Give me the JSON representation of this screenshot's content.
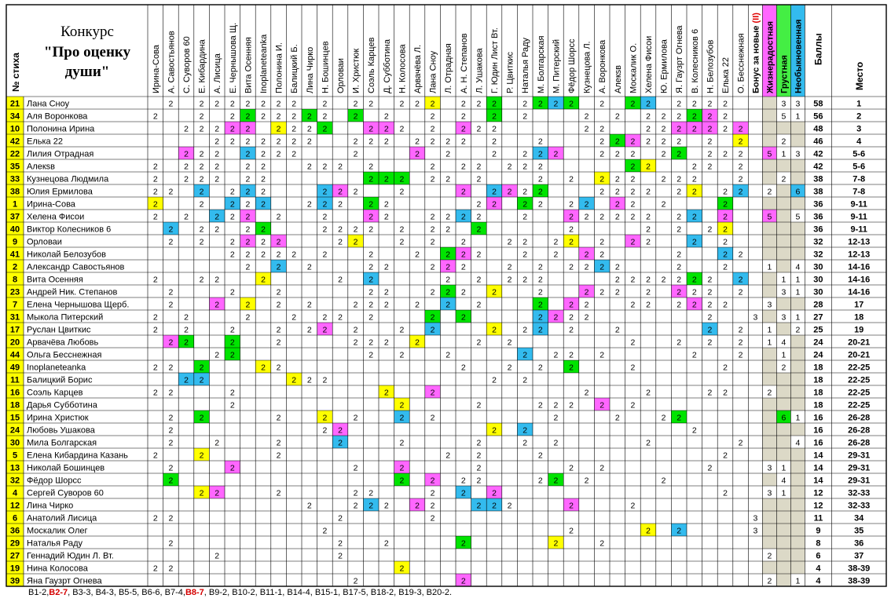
{
  "title": {
    "line1": "Конкурс",
    "line2": "\"Про оценку",
    "line3": "души\""
  },
  "headers": {
    "num": "№ стиха",
    "bonus": "Бонус за новые (II)",
    "bonus_main": "Бонус за новые",
    "bonus_red": "(II)",
    "zhizn": "Жизнерадостная",
    "grust": "Грустная",
    "neob": "Необыкновенная",
    "bally": "Баллы",
    "mesto": "Место"
  },
  "colors": {
    "yellow": "#ffff00",
    "green": "#00e400",
    "pink": "#ff66ff",
    "blue": "#33bbee",
    "numcell": "#ffff00",
    "grey": "#dcd9c7",
    "red_text": "#e00000",
    "hdr_pink": "#ff66ff",
    "hdr_green": "#44ee44",
    "hdr_blue": "#33bbee"
  },
  "jurors": [
    "Ирина-Сова",
    "А. Савостьянов",
    "С. Суворов 60",
    "Е. Кибардина",
    "А. Лисица",
    "Е. Чернышова Щ.",
    "Вита Осенняя",
    "Inoplaneteanka",
    "Полонина И.",
    "Балицкий Б.",
    "Лина Чирко",
    "Н. Бошинцев",
    "Орловаи",
    "И. Христюк",
    "Соэль Карцев",
    "Д. Субботина",
    "Н. Колосова",
    "Арвачёва Л.",
    "Лана Сноу",
    "Л. Отрадная",
    "А. Н. Степанов",
    "Л. Ушакова",
    "Г. Юдин Лист Вт.",
    "Р. Цвиткис",
    "Наталья Раду",
    "М. Болгарская",
    "М. Питерский",
    "Фёдор Шорсс",
    "Кузнецова Л.",
    "А. Воронкова",
    "Алекsв",
    "Москалик О.",
    "Хелена Фисои",
    "Ю. Ермилова",
    "Я. Гаузрт Огнева",
    "В. Колесников 6",
    "Н. Белозубов",
    "Елька 22",
    "О. Бесснежная"
  ],
  "rows": [
    {
      "num": "21",
      "name": "Лана Сноу",
      "cells": "_2_2222222_2_22_22Y_22G_2GBG_2_GB_2222",
      "bonus": "",
      "z": "",
      "g": "3",
      "n": "3",
      "score": "58",
      "place": "1"
    },
    {
      "num": "34",
      "name": "Аля Воронкова",
      "cells": "2__2_2G222G2_G_2__2_2_G_2___2_2_222GP2_",
      "bonus": "",
      "z": "",
      "g": "5",
      "n": "1",
      "score": "56",
      "place": "2"
    },
    {
      "num": "10",
      "name": "Полонина Ирина",
      "cells": "__222PP_Y22G__PP2_2_P22_____22__22PPP2P2",
      "bonus": "",
      "z": "",
      "g": "",
      "n": "",
      "score": "48",
      "place": "3"
    },
    {
      "num": "42",
      "name": "Елька 22",
      "cells": "____2222222__222_2222_2__2___2GP222_2_Y_",
      "bonus": "",
      "z": "",
      "g": "2",
      "n": "",
      "score": "46",
      "place": "4"
    },
    {
      "num": "22",
      "name": "Лилия Отрадная",
      "cells": "__P22_B222___2___P_2__2_2BP__222_2G_222_",
      "bonus": "",
      "z": "5",
      "g": "1",
      "n": "3",
      "score": "42",
      "place": "5-6"
    },
    {
      "num": "35",
      "name": "Алекsв",
      "cells": "2_222_22__222_2___2_22_222_____GY__22_222",
      "bonus": "",
      "z": "",
      "g": "",
      "n": "",
      "score": "42",
      "place": "5-6"
    },
    {
      "num": "33",
      "name": "Кузнецова Людмила",
      "cells": "2_222_22______GGG_22_2___2_2_Y22_222__2",
      "bonus": "",
      "z": "",
      "g": "2",
      "n": "",
      "score": "38",
      "place": "7-8"
    },
    {
      "num": "38",
      "name": "Юлия Ермилова",
      "cells": "22_B_2B2___BP2__2___P_BP2G___2222_2Y_2B_",
      "bonus": "",
      "z": "2",
      "g": "",
      "n": "6",
      "score": "38",
      "place": "7-8"
    },
    {
      "num": "1",
      "name": "Ирина-Сова",
      "cells": "Y__2_B2B__2B2_G2_____2P_G2_2B_P2_2___G_2",
      "bonus": "",
      "z": "",
      "g": "",
      "n": "",
      "score": "36",
      "place": "9-11"
    },
    {
      "num": "37",
      "name": "Хелена Фисои",
      "cells": "2_2_B2P_2__2__P2__22B2__2__P22222_2B_P_2",
      "bonus": "",
      "z": "5",
      "g": "",
      "n": "5",
      "score": "36",
      "place": "9-11"
    },
    {
      "num": "40",
      "name": "Виктор Колесников 6",
      "cells": "_B_22_2G___2222_2_22_G_____2____2_2_2Y__",
      "bonus": "",
      "z": "",
      "g": "",
      "n": "",
      "score": "36",
      "place": "9-11"
    },
    {
      "num": "9",
      "name": "Орловаи",
      "cells": "_2_2_2P2P___2Y__2_2_2__22_2Y_2_P2__B_2__",
      "bonus": "",
      "z": "",
      "g": "",
      "n": "",
      "score": "32",
      "place": "12-13"
    },
    {
      "num": "41",
      "name": "Николай Белозубов",
      "cells": "_____22222_2__2__2_GP2__2_2_P2____2__B2_",
      "bonus": "",
      "z": "",
      "g": "",
      "n": "",
      "score": "32",
      "place": "12-13"
    },
    {
      "num": "2",
      "name": "Александр Савостьянов",
      "cells": "______2_B_2___22__2P2__2_2_22B2___2__2__",
      "bonus": "",
      "z": "1",
      "g": "",
      "n": "4",
      "score": "30",
      "place": "14-16"
    },
    {
      "num": "8",
      "name": "Вита Осенняя",
      "cells": "2__22__Y____2_B____2_2_222____22222G2_B__",
      "bonus": "",
      "z": "",
      "g": "1",
      "n": "1",
      "score": "30",
      "place": "14-16"
    },
    {
      "num": "23",
      "name": "Андрей Ник. Степанов",
      "cells": "_2___2__2_____22__2G2_Y__2__P22_2_P22_22_",
      "bonus": "",
      "z": "",
      "g": "3",
      "n": "1",
      "score": "30",
      "place": "14-16"
    },
    {
      "num": "7",
      "name": "Елена Чернышова Щерб.",
      "cells": "_2__P_Y_2_2__222_2_B_2___G_P2__22_2P22_2",
      "bonus": "",
      "z": "3",
      "g": "",
      "n": "",
      "score": "28",
      "place": "17"
    },
    {
      "num": "31",
      "name": "Мыкола Питерский",
      "cells": "2_2___2__2_22_2___G_G____BP22_______2____",
      "bonus": "3",
      "z": "",
      "g": "3",
      "n": "1",
      "score": "27",
      "place": "18"
    },
    {
      "num": "17",
      "name": "Руслан Цвиткис",
      "cells": "2_2__2__2_2P_2__2_B___Y_2B_2__2_____B_2_",
      "bonus": "",
      "z": "1",
      "g": "",
      "n": "2",
      "score": "25",
      "place": "19"
    },
    {
      "num": "20",
      "name": "Арвачёва Любовь",
      "cells": "_PG__G__2____222_Y___2_2_______2__2_2_2_",
      "bonus": "",
      "z": "1",
      "g": "4",
      "n": "",
      "score": "24",
      "place": "20-21"
    },
    {
      "num": "44",
      "name": "Ольга Бесснежная",
      "cells": "____2G________2_2__2____B_22_2_____2__2",
      "bonus": "",
      "z": "",
      "g": "1",
      "n": "",
      "score": "24",
      "place": "20-21"
    },
    {
      "num": "49",
      "name": "Inoplaneteanka",
      "cells": "22_G___Y2___________2__2_2_G___2_____2__",
      "bonus": "",
      "z": "",
      "g": "2",
      "n": "",
      "score": "18",
      "place": "22-25"
    },
    {
      "num": "11",
      "name": "Балицкий Борис",
      "cells": "__BB_____Y22__________2_2______________",
      "bonus": "",
      "z": "",
      "g": "",
      "n": "",
      "score": "18",
      "place": "22-25"
    },
    {
      "num": "16",
      "name": "Соэль Карцев",
      "cells": "22___2_________Y__P_________2___2___22_",
      "bonus": "",
      "z": "2",
      "g": "",
      "n": "",
      "score": "18",
      "place": "22-25"
    },
    {
      "num": "18",
      "name": "Дарья Субботина",
      "cells": "_____2__________Y____2___222_P_2______",
      "bonus": "",
      "z": "",
      "g": "",
      "n": "",
      "score": "18",
      "place": "22-25"
    },
    {
      "num": "15",
      "name": "Ирина Христюк",
      "cells": "_2_G____2__Y_2__B_2_______2___2__2G____",
      "bonus": "",
      "z": "",
      "g": "6",
      "n": "1",
      "score": "16",
      "place": "26-28"
    },
    {
      "num": "24",
      "name": "Любовь Ушакова",
      "cells": "_2_________2P_________Y_B__________2____",
      "bonus": "",
      "z": "",
      "g": "",
      "n": "",
      "score": "16",
      "place": "26-28"
    },
    {
      "num": "30",
      "name": "Мила Болгарская",
      "cells": "_2__2___2___B___2____2__2_2_____2_____2",
      "bonus": "",
      "z": "",
      "g": "",
      "n": "4",
      "score": "16",
      "place": "26-28"
    },
    {
      "num": "5",
      "name": "Елена Кибардина Казань",
      "cells": "2__Y____2__________2_2___2___________2_",
      "bonus": "",
      "z": "",
      "g": "",
      "n": "",
      "score": "14",
      "place": "29-31"
    },
    {
      "num": "13",
      "name": "Николай Бошинцев",
      "cells": "_2___P_______2__P____2_____2_2______2",
      "bonus": "",
      "z": "3",
      "g": "1",
      "n": "",
      "score": "14",
      "place": "29-31"
    },
    {
      "num": "32",
      "name": "Фёдор Шорсс",
      "cells": "_G______________G_P_22___2G_2____2_____2",
      "bonus": "",
      "z": "",
      "g": "4",
      "n": "",
      "score": "14",
      "place": "29-31"
    },
    {
      "num": "4",
      "name": "Сергей Суворов 60",
      "cells": "___YP___2____22___2_B_P______________2_",
      "bonus": "",
      "z": "3",
      "g": "1",
      "n": "",
      "score": "12",
      "place": "32-33"
    },
    {
      "num": "12",
      "name": "Лина Чирко",
      "cells": "__________2__2B2_P2__BB2___P___2______",
      "bonus": "",
      "z": "",
      "g": "",
      "n": "",
      "score": "12",
      "place": "32-33"
    },
    {
      "num": "6",
      "name": "Анатолий Лисица",
      "cells": "22__________2_____2____________________",
      "bonus": "3",
      "z": "",
      "g": "",
      "n": "",
      "score": "11",
      "place": "34"
    },
    {
      "num": "36",
      "name": "Москалик Олег",
      "cells": "___________2_______________2____Y_B_____",
      "bonus": "3",
      "z": "",
      "g": "",
      "n": "",
      "score": "9",
      "place": "35"
    },
    {
      "num": "29",
      "name": "Наталья Раду",
      "cells": "_2__________2__2____G_____Y__2__________",
      "bonus": "",
      "z": "",
      "g": "",
      "n": "",
      "score": "8",
      "place": "36"
    },
    {
      "num": "27",
      "name": "Геннадий Юдин Л. Вт.",
      "cells": "____2_______2___________________________",
      "bonus": "",
      "z": "2",
      "g": "",
      "n": "",
      "score": "6",
      "place": "37"
    },
    {
      "num": "19",
      "name": "Нина Колосова",
      "cells": "22______________Y_____________________",
      "bonus": "",
      "z": "",
      "g": "",
      "n": "",
      "score": "4",
      "place": "38-39"
    },
    {
      "num": "39",
      "name": "Яна Гаузрт Огнева",
      "cells": "_____________2______P_________________",
      "bonus": "",
      "z": "2",
      "g": "",
      "n": "1",
      "score": "4",
      "place": "38-39"
    }
  ],
  "footer": [
    {
      "t": "B1-2,",
      "red": false
    },
    {
      "t": "B2-7",
      "red": true
    },
    {
      "t": ", B3-3, B4-3, B5-5, B6-6, B7-4,",
      "red": false
    },
    {
      "t": "B8-7",
      "red": true
    },
    {
      "t": ", B9-2, B10-2, B11-1, B14-4, B15-1, B17-5, B18-2, B19-3, B20-2.",
      "red": false
    }
  ]
}
